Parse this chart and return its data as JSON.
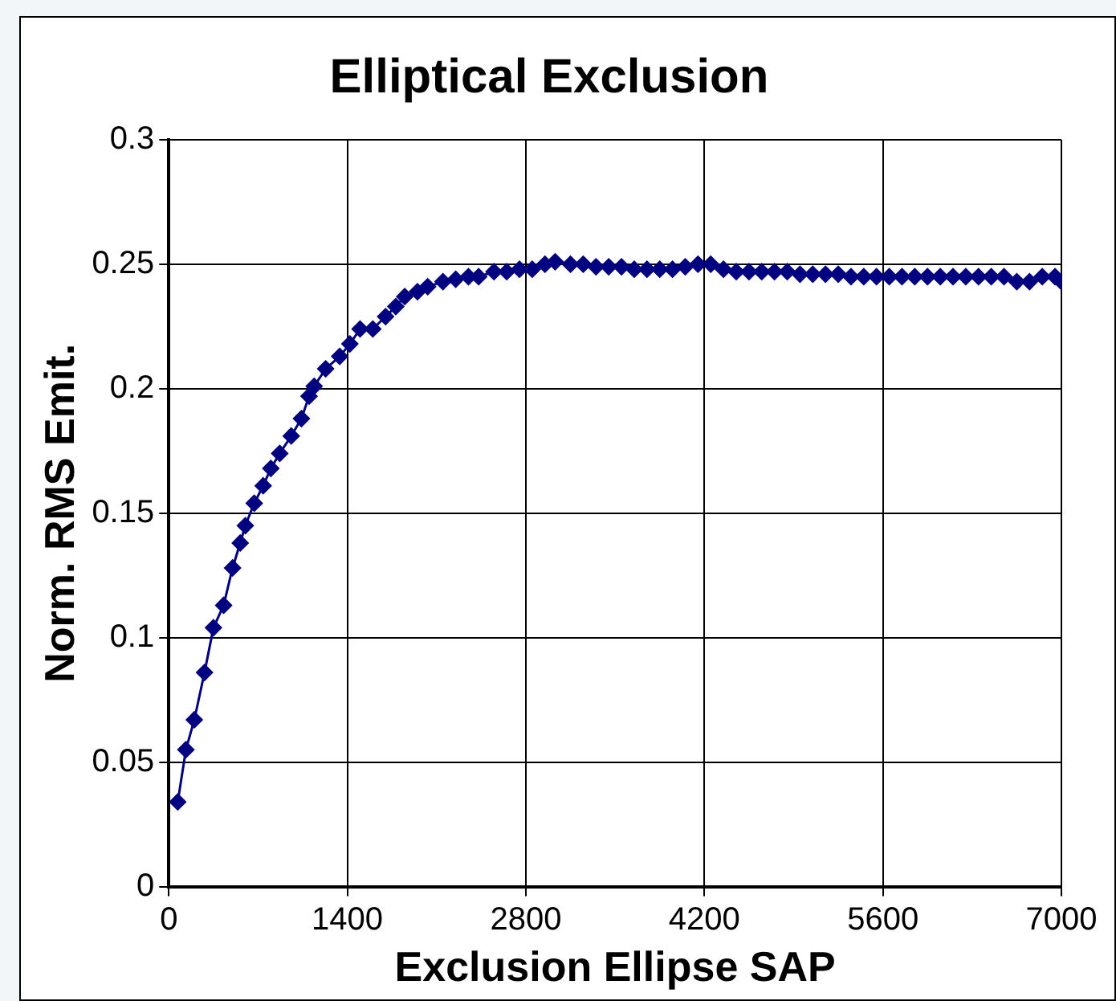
{
  "chart_data": {
    "type": "line",
    "title": "Elliptical Exclusion",
    "xlabel": "Exclusion Ellipse SAP",
    "ylabel": "Norm. RMS Emit.",
    "x": [
      70,
      134,
      200,
      280,
      350,
      430,
      500,
      560,
      600,
      670,
      740,
      800,
      870,
      960,
      1040,
      1100,
      1140,
      1230,
      1340,
      1420,
      1500,
      1600,
      1700,
      1780,
      1850,
      1950,
      2030,
      2150,
      2250,
      2350,
      2430,
      2550,
      2650,
      2750,
      2850,
      2950,
      3030,
      3150,
      3250,
      3350,
      3450,
      3550,
      3650,
      3750,
      3850,
      3950,
      4050,
      4150,
      4250,
      4350,
      4450,
      4550,
      4650,
      4750,
      4850,
      4950,
      5050,
      5150,
      5250,
      5350,
      5450,
      5550,
      5650,
      5750,
      5850,
      5950,
      6050,
      6150,
      6250,
      6350,
      6450,
      6550,
      6650,
      6750,
      6850,
      6950,
      7000
    ],
    "series": [
      {
        "color": "#000080",
        "values": [
          0.034,
          0.055,
          0.067,
          0.086,
          0.104,
          0.113,
          0.128,
          0.138,
          0.145,
          0.154,
          0.161,
          0.168,
          0.174,
          0.181,
          0.188,
          0.197,
          0.201,
          0.208,
          0.213,
          0.218,
          0.224,
          0.224,
          0.229,
          0.233,
          0.237,
          0.239,
          0.241,
          0.243,
          0.244,
          0.245,
          0.245,
          0.247,
          0.247,
          0.248,
          0.248,
          0.25,
          0.251,
          0.25,
          0.25,
          0.249,
          0.249,
          0.249,
          0.248,
          0.248,
          0.248,
          0.248,
          0.249,
          0.25,
          0.25,
          0.248,
          0.247,
          0.247,
          0.247,
          0.247,
          0.247,
          0.246,
          0.246,
          0.246,
          0.246,
          0.245,
          0.245,
          0.245,
          0.245,
          0.245,
          0.245,
          0.245,
          0.245,
          0.245,
          0.245,
          0.245,
          0.245,
          0.245,
          0.243,
          0.243,
          0.245,
          0.245,
          0.243
        ]
      }
    ],
    "xlim": [
      0,
      7000
    ],
    "xticks": [
      0,
      1400,
      2800,
      4200,
      5600,
      7000
    ],
    "ylim": [
      0,
      0.3
    ],
    "yticks": [
      0,
      0.05,
      0.1,
      0.15,
      0.2,
      0.25,
      0.3
    ],
    "grid": true,
    "marker": "diamond",
    "line_style": "solid"
  }
}
